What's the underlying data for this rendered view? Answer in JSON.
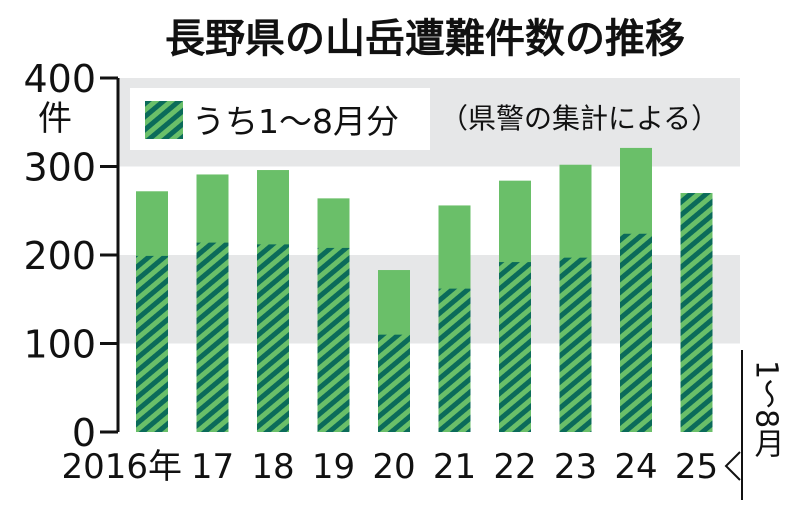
{
  "chart_data": {
    "type": "bar",
    "title": "長野県の山岳遭難件数の推移",
    "ylabel": "件",
    "ylim": [
      0,
      400
    ],
    "yticks": [
      0,
      100,
      200,
      300,
      400
    ],
    "grid": "alternating horizontal bands",
    "categories": [
      "2016年",
      "17",
      "18",
      "19",
      "20",
      "21",
      "22",
      "23",
      "24",
      "25"
    ],
    "series": [
      {
        "name": "",
        "values": [
          272,
          291,
          296,
          264,
          183,
          256,
          284,
          302,
          321,
          270
        ],
        "color": "#6abf69"
      },
      {
        "name": "うち1～8月分",
        "values": [
          199,
          214,
          212,
          208,
          110,
          162,
          192,
          197,
          224,
          270
        ],
        "color": "#0b6b5a",
        "pattern": "diagonal-hatch"
      }
    ],
    "legend": {
      "label": "うち1～8月分",
      "placement": "top-left"
    },
    "annotation": "（県警の集計による）",
    "side_note": "1～8月",
    "colors": {
      "bar": "#6abf69",
      "hatch": "#0b6b5a",
      "band": "#e6e7e8"
    }
  }
}
